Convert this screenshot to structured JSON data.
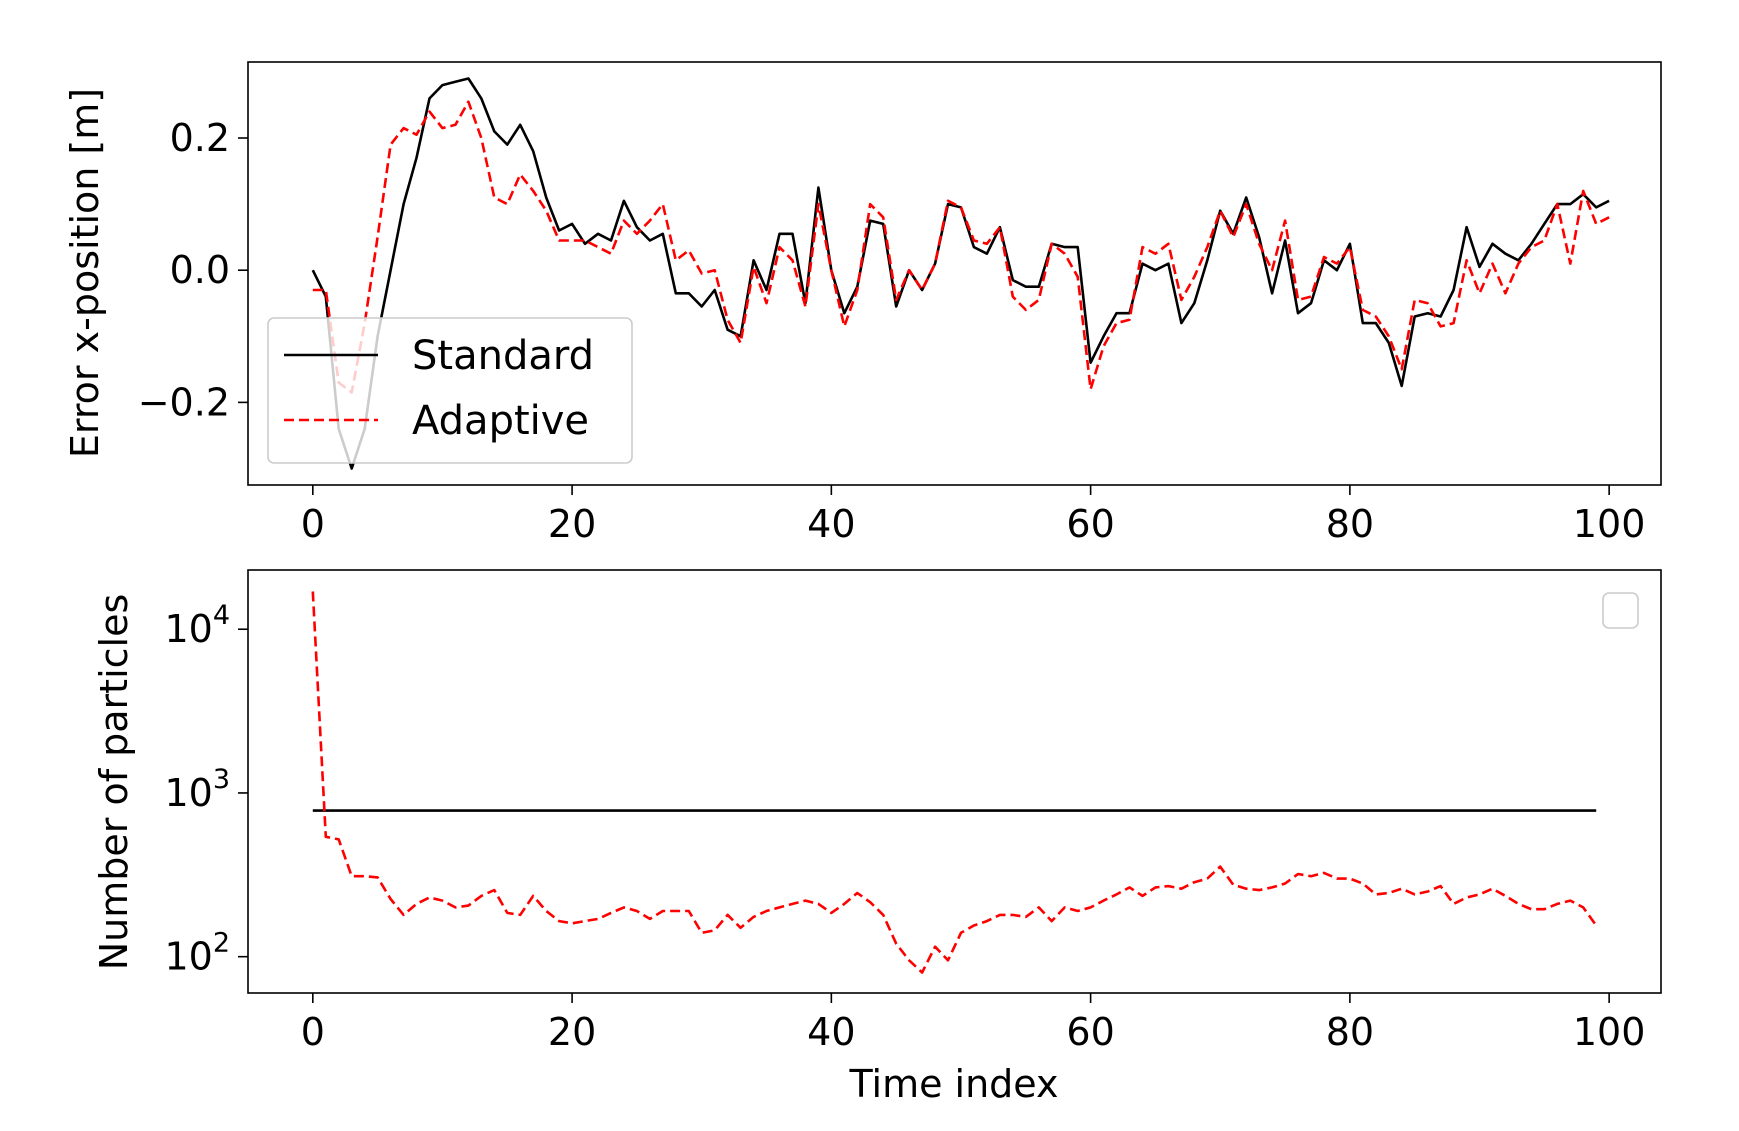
{
  "chart_data": [
    {
      "type": "line",
      "ylabel": "Error x-position [m]",
      "xlabel": "",
      "xlim": [
        -5,
        104
      ],
      "ylim": [
        -0.325,
        0.315
      ],
      "xticks": [
        0,
        20,
        40,
        60,
        80,
        100
      ],
      "xtick_labels": [
        "0",
        "20",
        "40",
        "60",
        "80",
        "100"
      ],
      "yticks": [
        -0.2,
        0.0,
        0.2
      ],
      "ytick_labels": [
        "−0.2",
        "0.0",
        "0.2"
      ],
      "grid": false,
      "legend": {
        "position": "lower-left",
        "entries": [
          "Standard",
          "Adaptive"
        ]
      },
      "series": [
        {
          "name": "Standard",
          "color": "#000000",
          "dash": "solid",
          "x_start": 0,
          "values": [
            0.0,
            -0.04,
            -0.24,
            -0.3,
            -0.24,
            -0.1,
            0.0,
            0.1,
            0.17,
            0.26,
            0.28,
            0.285,
            0.29,
            0.26,
            0.21,
            0.19,
            0.22,
            0.18,
            0.11,
            0.06,
            0.07,
            0.04,
            0.055,
            0.045,
            0.105,
            0.065,
            0.045,
            0.055,
            -0.035,
            -0.035,
            -0.055,
            -0.03,
            -0.09,
            -0.1,
            0.015,
            -0.03,
            0.055,
            0.055,
            -0.05,
            0.125,
            0.0,
            -0.065,
            -0.025,
            0.075,
            0.07,
            -0.055,
            0.0,
            -0.03,
            0.01,
            0.1,
            0.095,
            0.035,
            0.025,
            0.065,
            -0.015,
            -0.025,
            -0.025,
            0.04,
            0.035,
            0.035,
            -0.14,
            -0.1,
            -0.065,
            -0.065,
            0.01,
            0.0,
            0.01,
            -0.08,
            -0.05,
            0.015,
            0.09,
            0.055,
            0.11,
            0.05,
            -0.035,
            0.045,
            -0.065,
            -0.05,
            0.015,
            0.0,
            0.04,
            -0.08,
            -0.08,
            -0.11,
            -0.175,
            -0.07,
            -0.065,
            -0.07,
            -0.03,
            0.065,
            0.005,
            0.04,
            0.025,
            0.015,
            0.04,
            0.07,
            0.1,
            0.1,
            0.115,
            0.095,
            0.105
          ]
        },
        {
          "name": "Adaptive",
          "color": "#ff0000",
          "dash": "dashed",
          "x_start": 0,
          "values": [
            -0.03,
            -0.03,
            -0.17,
            -0.185,
            -0.08,
            0.05,
            0.19,
            0.215,
            0.205,
            0.24,
            0.215,
            0.22,
            0.255,
            0.2,
            0.11,
            0.1,
            0.145,
            0.12,
            0.09,
            0.045,
            0.045,
            0.045,
            0.035,
            0.025,
            0.075,
            0.055,
            0.075,
            0.1,
            0.015,
            0.03,
            -0.005,
            0.0,
            -0.075,
            -0.11,
            0.005,
            -0.05,
            0.035,
            0.015,
            -0.055,
            0.1,
            0.0,
            -0.085,
            -0.03,
            0.1,
            0.08,
            -0.045,
            0.0,
            -0.03,
            0.01,
            0.105,
            0.095,
            0.045,
            0.04,
            0.065,
            -0.04,
            -0.06,
            -0.045,
            0.04,
            0.025,
            -0.01,
            -0.18,
            -0.115,
            -0.08,
            -0.075,
            0.035,
            0.025,
            0.04,
            -0.045,
            -0.01,
            0.035,
            0.09,
            0.05,
            0.1,
            0.04,
            0.0,
            0.075,
            -0.045,
            -0.04,
            0.02,
            0.01,
            0.035,
            -0.06,
            -0.07,
            -0.1,
            -0.15,
            -0.045,
            -0.05,
            -0.085,
            -0.08,
            0.015,
            -0.035,
            0.01,
            -0.035,
            0.01,
            0.035,
            0.045,
            0.1,
            0.01,
            0.12,
            0.07,
            0.08
          ]
        }
      ]
    },
    {
      "type": "line",
      "ylabel": "Number of particles",
      "xlabel": "Time index",
      "xscale": "linear",
      "yscale": "log",
      "xlim": [
        -5,
        104
      ],
      "ylim": [
        60,
        23000
      ],
      "xticks": [
        0,
        20,
        40,
        60,
        80,
        100
      ],
      "xtick_labels": [
        "0",
        "20",
        "40",
        "60",
        "80",
        "100"
      ],
      "yticks": [
        100,
        1000,
        10000
      ],
      "ytick_bases": [
        "10",
        "10",
        "10"
      ],
      "ytick_exponents": [
        "2",
        "3",
        "4"
      ],
      "grid": false,
      "legend": {
        "position": "top-right",
        "entries": []
      },
      "series": [
        {
          "color": "#000000",
          "dash": "solid",
          "x_start": 0,
          "values": [
            780,
            780,
            780,
            780,
            780,
            780,
            780,
            780,
            780,
            780,
            780,
            780,
            780,
            780,
            780,
            780,
            780,
            780,
            780,
            780,
            780,
            780,
            780,
            780,
            780,
            780,
            780,
            780,
            780,
            780,
            780,
            780,
            780,
            780,
            780,
            780,
            780,
            780,
            780,
            780,
            780,
            780,
            780,
            780,
            780,
            780,
            780,
            780,
            780,
            780,
            780,
            780,
            780,
            780,
            780,
            780,
            780,
            780,
            780,
            780,
            780,
            780,
            780,
            780,
            780,
            780,
            780,
            780,
            780,
            780,
            780,
            780,
            780,
            780,
            780,
            780,
            780,
            780,
            780,
            780,
            780,
            780,
            780,
            780,
            780,
            780,
            780,
            780,
            780,
            780,
            780,
            780,
            780,
            780,
            780,
            780,
            780,
            780,
            780,
            780
          ]
        },
        {
          "color": "#ff0000",
          "dash": "dashed",
          "x_start": 0,
          "values": [
            17000,
            540,
            520,
            310,
            310,
            305,
            225,
            180,
            210,
            230,
            220,
            200,
            205,
            235,
            255,
            185,
            180,
            235,
            190,
            165,
            160,
            165,
            170,
            185,
            200,
            190,
            170,
            190,
            190,
            190,
            140,
            145,
            180,
            150,
            175,
            190,
            200,
            210,
            220,
            210,
            185,
            210,
            245,
            215,
            180,
            120,
            95,
            80,
            115,
            95,
            140,
            155,
            165,
            180,
            180,
            175,
            200,
            165,
            200,
            190,
            200,
            220,
            240,
            265,
            235,
            265,
            270,
            260,
            285,
            300,
            355,
            275,
            260,
            255,
            265,
            280,
            320,
            310,
            325,
            300,
            300,
            280,
            240,
            245,
            260,
            240,
            250,
            270,
            210,
            230,
            240,
            260,
            235,
            210,
            195,
            195,
            210,
            220,
            200,
            155
          ]
        }
      ]
    }
  ]
}
